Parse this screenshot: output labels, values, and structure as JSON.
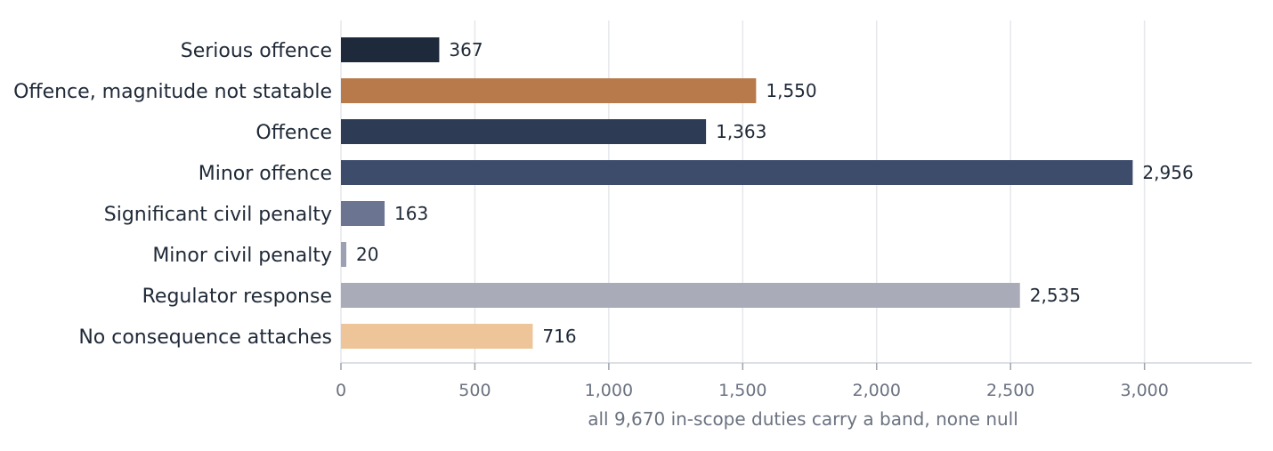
{
  "chart_data": {
    "type": "bar",
    "orientation": "horizontal",
    "categories": [
      "Serious offence",
      "Offence, magnitude not statable",
      "Offence",
      "Minor offence",
      "Significant civil penalty",
      "Minor civil penalty",
      "Regulator response",
      "No consequence attaches"
    ],
    "values": [
      367,
      1550,
      1363,
      2956,
      163,
      20,
      2535,
      716
    ],
    "value_labels": [
      "367",
      "1,550",
      "1,363",
      "2,956",
      "163",
      "20",
      "2,535",
      "716"
    ],
    "colors": [
      "#1e293b",
      "#b87a4b",
      "#2e3b55",
      "#3e4c6b",
      "#6b7592",
      "#9ca0b3",
      "#aaabb8",
      "#edc599"
    ],
    "xlabel": "all 9,670 in-scope duties carry a band, none null",
    "xlim": [
      0,
      3400
    ],
    "xticks": [
      0,
      500,
      1000,
      1500,
      2000,
      2500,
      3000
    ],
    "xtick_labels": [
      "0",
      "500",
      "1,000",
      "1,500",
      "2,000",
      "2,500",
      "3,000"
    ],
    "grid": true
  }
}
